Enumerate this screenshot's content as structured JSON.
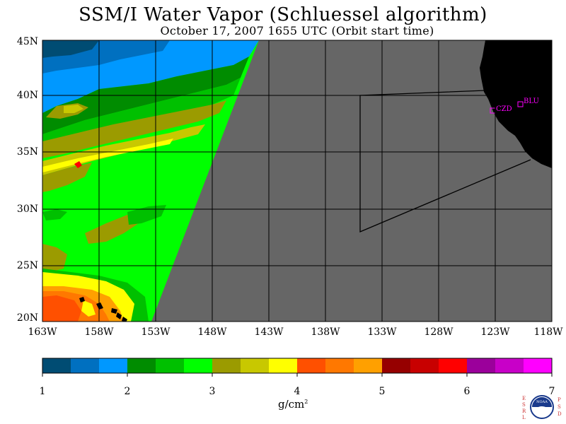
{
  "title": "SSM/I Water Vapor (Schluessel algorithm)",
  "subtitle": "October 17, 2007  1655 UTC  (Orbit start time)",
  "map": {
    "lat_labels": [
      "45N",
      "40N",
      "35N",
      "30N",
      "25N",
      "20N"
    ],
    "lon_labels": [
      "163W",
      "158W",
      "153W",
      "148W",
      "143W",
      "138W",
      "133W",
      "128W",
      "123W",
      "118W"
    ],
    "stations": [
      {
        "id": "CZD"
      },
      {
        "id": "BLU"
      }
    ],
    "colors": {
      "no_data": "#666666",
      "land": "#000000",
      "station": "#ff00ff",
      "grid": "#000000"
    }
  },
  "colorbar": {
    "colors": [
      "#004c73",
      "#0070c0",
      "#0098ff",
      "#008c00",
      "#00c000",
      "#00ff00",
      "#9b9b00",
      "#c8c800",
      "#ffff00",
      "#ff5000",
      "#ff7800",
      "#ffa000",
      "#960000",
      "#c80000",
      "#ff0000",
      "#9b009b",
      "#c800c8",
      "#ff00ff"
    ],
    "tick_labels": [
      "1",
      "2",
      "3",
      "4",
      "5",
      "6",
      "7"
    ],
    "unit": "g/cm",
    "unit_sup": "2"
  },
  "logo": {
    "left_letters": [
      "E",
      "S",
      "R",
      "L"
    ],
    "right_letters": [
      "P",
      "S",
      "D"
    ],
    "text": "NOAA"
  }
}
